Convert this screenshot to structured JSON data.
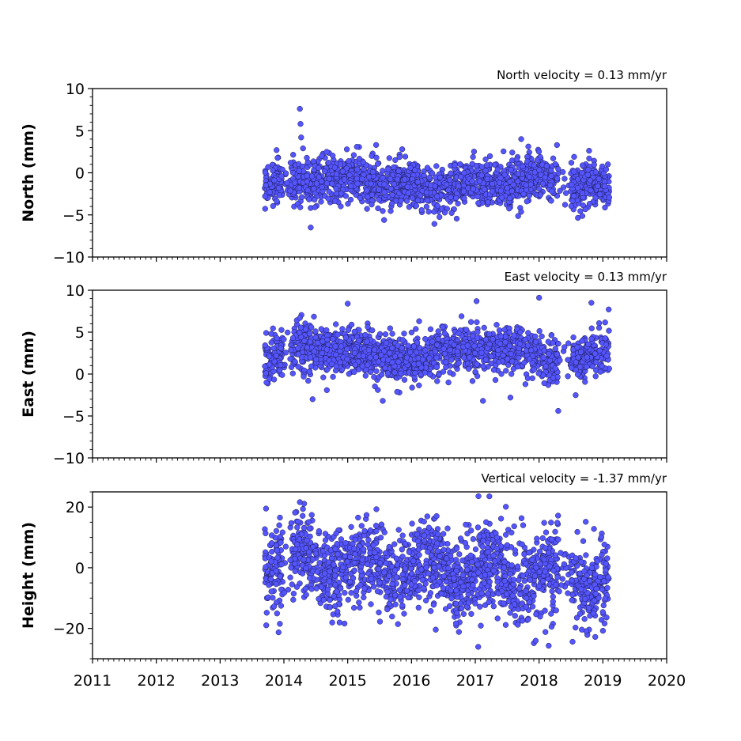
{
  "chart_data": [
    {
      "type": "scatter",
      "title": "North velocity = 0.13 mm/yr",
      "xlabel": "",
      "ylabel": "North (mm)",
      "xlim": [
        2011,
        2020
      ],
      "ylim": [
        -10,
        10
      ],
      "yticks": [
        10,
        5,
        0,
        -5,
        -10
      ],
      "ytick_labels": [
        "10",
        "5",
        "0",
        "−5",
        "−10"
      ],
      "xticks": [
        2011,
        2012,
        2013,
        2014,
        2015,
        2016,
        2017,
        2018,
        2019,
        2020
      ],
      "xtick_labels": [],
      "marker_color": "#5555ff",
      "time_range": [
        2013.7,
        2019.1
      ],
      "series": [
        {
          "x": [
            2013.72,
            2013.78,
            2013.85,
            2013.92,
            2014.05,
            2014.25,
            2014.26,
            2014.27,
            2014.3,
            2014.42,
            2014.55,
            2014.7,
            2014.82,
            2014.95,
            2015.05,
            2015.15,
            2015.3,
            2015.45,
            2015.55,
            2015.68,
            2015.8,
            2015.95,
            2016.1,
            2016.25,
            2016.4,
            2016.55,
            2016.68,
            2016.82,
            2016.95,
            2017.1,
            2017.2,
            2017.35,
            2017.5,
            2017.65,
            2017.72,
            2017.85,
            2018.0,
            2018.12,
            2018.28,
            2018.4,
            2018.55,
            2018.68,
            2018.8,
            2018.92,
            2019.05
          ],
          "y": [
            -1.5,
            -2.3,
            -0.9,
            -1.8,
            -1.2,
            7.6,
            5.8,
            4.2,
            2.9,
            -6.5,
            -0.5,
            1.2,
            -1.9,
            -0.8,
            -1.6,
            0.4,
            -2.1,
            1.8,
            -0.6,
            -1.9,
            0.2,
            -2.4,
            -1.1,
            0.6,
            -2.8,
            -1.4,
            0.9,
            -2.2,
            -1.0,
            -0.3,
            -3.5,
            0.4,
            -1.8,
            1.6,
            4.0,
            -0.5,
            -1.9,
            0.8,
            3.3,
            -0.7,
            1.9,
            -2.4,
            -0.9,
            -1.6,
            0.4
          ]
        }
      ]
    },
    {
      "type": "scatter",
      "title": "East velocity = 0.13 mm/yr",
      "xlabel": "",
      "ylabel": "East (mm)",
      "xlim": [
        2011,
        2020
      ],
      "ylim": [
        -10,
        10
      ],
      "yticks": [
        10,
        5,
        0,
        -5,
        -10
      ],
      "ytick_labels": [
        "10",
        "5",
        "0",
        "−5",
        "−10"
      ],
      "xticks": [
        2011,
        2012,
        2013,
        2014,
        2015,
        2016,
        2017,
        2018,
        2019,
        2020
      ],
      "xtick_labels": [],
      "marker_color": "#5555ff",
      "time_range": [
        2013.7,
        2019.1
      ],
      "series": [
        {
          "x": [
            2013.72,
            2013.8,
            2013.88,
            2013.95,
            2014.1,
            2014.25,
            2014.38,
            2014.45,
            2014.6,
            2014.75,
            2014.9,
            2015.0,
            2015.12,
            2015.28,
            2015.42,
            2015.55,
            2015.7,
            2015.85,
            2015.98,
            2016.12,
            2016.28,
            2016.42,
            2016.58,
            2016.72,
            2016.88,
            2017.02,
            2017.12,
            2017.25,
            2017.4,
            2017.55,
            2017.7,
            2017.85,
            2018.0,
            2018.15,
            2018.3,
            2018.45,
            2018.6,
            2018.75,
            2018.82,
            2018.95,
            2019.05
          ],
          "y": [
            0.1,
            4.8,
            2.2,
            3.1,
            1.8,
            6.7,
            -0.8,
            -3.0,
            2.5,
            1.2,
            3.3,
            8.4,
            1.1,
            -0.2,
            2.9,
            -3.2,
            1.4,
            3.1,
            2.6,
            6.3,
            1.9,
            4.2,
            -1.0,
            2.7,
            3.4,
            8.7,
            -3.2,
            2.1,
            4.5,
            -2.8,
            3.6,
            1.8,
            9.1,
            2.4,
            -4.4,
            1.7,
            3.2,
            2.0,
            8.5,
            2.8,
            3.5
          ]
        }
      ]
    },
    {
      "type": "scatter",
      "title": "Vertical velocity = -1.37 mm/yr",
      "xlabel": "",
      "ylabel": "Height (mm)",
      "xlim": [
        2011,
        2020
      ],
      "ylim": [
        -30,
        25
      ],
      "yticks": [
        20,
        0,
        -20
      ],
      "ytick_labels": [
        "20",
        "0",
        "−20"
      ],
      "xticks": [
        2011,
        2012,
        2013,
        2014,
        2015,
        2016,
        2017,
        2018,
        2019,
        2020
      ],
      "xtick_labels": [
        "2011",
        "2012",
        "2013",
        "2014",
        "2015",
        "2016",
        "2017",
        "2018",
        "2019",
        "2020"
      ],
      "marker_color": "#5555ff",
      "time_range": [
        2013.7,
        2019.1
      ],
      "series": [
        {
          "x": [
            2013.72,
            2013.8,
            2013.88,
            2013.95,
            2014.1,
            2014.25,
            2014.35,
            2014.5,
            2014.65,
            2014.8,
            2014.95,
            2015.1,
            2015.25,
            2015.45,
            2015.6,
            2015.75,
            2015.9,
            2016.05,
            2016.2,
            2016.38,
            2016.55,
            2016.7,
            2016.85,
            2017.0,
            2017.05,
            2017.2,
            2017.35,
            2017.48,
            2017.6,
            2017.75,
            2017.9,
            2018.0,
            2018.1,
            2018.15,
            2018.3,
            2018.45,
            2018.6,
            2018.75,
            2018.88,
            2019.0,
            2019.05
          ],
          "y": [
            19.5,
            2.1,
            -5.4,
            8.3,
            -3.2,
            21.6,
            -8.9,
            4.7,
            11.2,
            -2.6,
            -18.4,
            6.3,
            -9.8,
            19.3,
            1.5,
            -12.1,
            7.9,
            -4.4,
            10.6,
            -20.4,
            3.1,
            -7.5,
            14.2,
            -11.8,
            23.6,
            5.2,
            -16.7,
            20.1,
            -3.9,
            14.0,
            -12.8,
            -6.1,
            -21.2,
            -25.7,
            9.3,
            -8.4,
            11.8,
            -2.5,
            -22.8,
            -14.6,
            1.3
          ]
        }
      ]
    }
  ]
}
